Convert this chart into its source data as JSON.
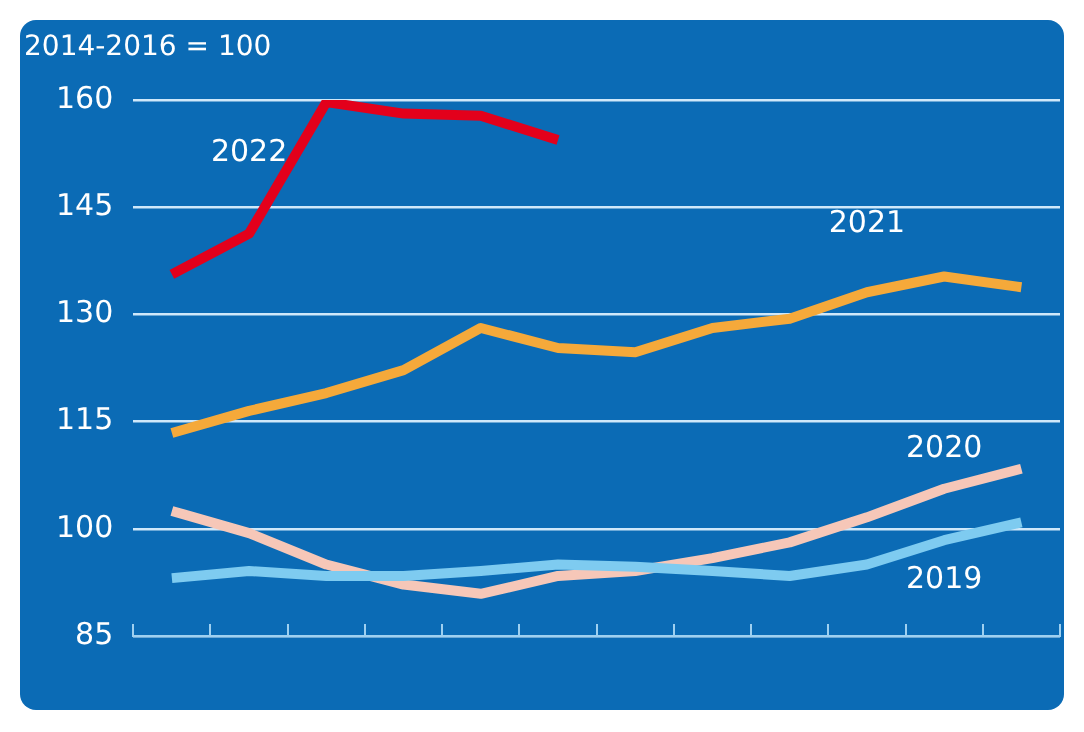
{
  "chart_data": {
    "type": "line",
    "ylabel": "2014-2016 = 100",
    "categories": [
      null,
      null,
      null,
      null,
      null,
      null,
      null,
      null,
      null,
      null,
      null,
      null
    ],
    "series": [
      {
        "name": "2019",
        "color": "#7ecbf0",
        "values": [
          93.1,
          94.1,
          93.4,
          93.4,
          94.1,
          95,
          94.7,
          94.1,
          93.4,
          95,
          98.4,
          100.9
        ]
      },
      {
        "name": "2020",
        "color": "#f6c7b8",
        "values": [
          102.5,
          99.4,
          95,
          92.2,
          90.9,
          93.4,
          94.1,
          95.9,
          98.1,
          101.6,
          105.6,
          108.4
        ]
      },
      {
        "name": "2021",
        "color": "#f5a93a",
        "values": [
          113.4,
          116.5,
          119,
          122.2,
          128.1,
          125.3,
          124.7,
          128.1,
          129.4,
          133.1,
          135.3,
          133.8
        ]
      },
      {
        "name": "2022",
        "color": "#e3001b",
        "values": [
          135.6,
          141.3,
          159.7,
          158.1,
          157.8,
          154.4,
          null,
          null,
          null,
          null,
          null,
          null
        ]
      }
    ],
    "ylim": [
      85,
      160
    ],
    "yticks": [
      85,
      100,
      115,
      130,
      145,
      160
    ],
    "grid": "y",
    "tick_labels": "y",
    "marker": "none",
    "line_style": "solid",
    "legend": false
  }
}
